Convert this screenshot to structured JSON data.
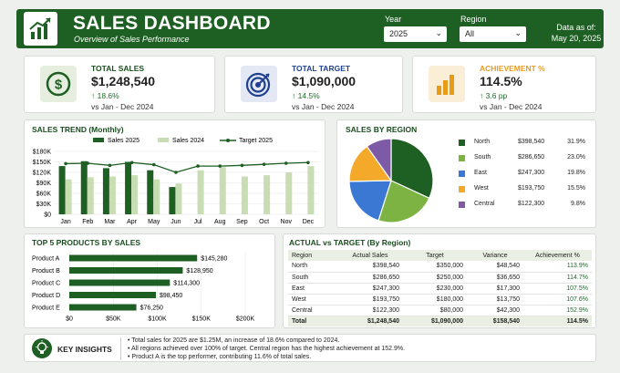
{
  "header": {
    "title": "SALES DASHBOARD",
    "subtitle": "Overview of Sales Performance",
    "year_label": "Year",
    "year_value": "2025",
    "region_label": "Region",
    "region_value": "All",
    "as_of_label": "Data as of:",
    "as_of_date": "May 20, 2025"
  },
  "kpis": [
    {
      "label": "TOTAL SALES",
      "value": "$1,248,540",
      "change": "↑ 18.6%",
      "comparison": "vs Jan - Dec 2024",
      "icon": "dollar-icon",
      "color": "#1e5f23"
    },
    {
      "label": "TOTAL TARGET",
      "value": "$1,090,000",
      "change": "↑ 14.5%",
      "comparison": "vs Jan - Dec 2024",
      "icon": "target-icon",
      "color": "#1f3f8f"
    },
    {
      "label": "ACHIEVEMENT %",
      "value": "114.5%",
      "change": "↑ 3.6 pp",
      "comparison": "vs Jan - Dec 2024",
      "icon": "bar-chart-icon",
      "color": "#e89b17"
    }
  ],
  "sales_trend": {
    "title": "SALES TREND (Monthly)",
    "legend": [
      "Sales 2025",
      "Sales 2024",
      "Target 2025"
    ]
  },
  "sales_by_region": {
    "title": "SALES BY REGION",
    "items": [
      {
        "name": "North",
        "value": "$398,540",
        "pct": "31.9%",
        "color": "#1e5f23"
      },
      {
        "name": "South",
        "value": "$286,650",
        "pct": "23.0%",
        "color": "#7cb342"
      },
      {
        "name": "East",
        "value": "$247,300",
        "pct": "19.8%",
        "color": "#3a78d4"
      },
      {
        "name": "West",
        "value": "$193,750",
        "pct": "15.5%",
        "color": "#f4a92a"
      },
      {
        "name": "Central",
        "value": "$122,300",
        "pct": "9.8%",
        "color": "#7d5aa6"
      }
    ]
  },
  "top_products": {
    "title": "TOP 5 PRODUCTS BY SALES"
  },
  "actual_vs_target": {
    "title": "ACTUAL vs TARGET (By Region)",
    "headers": [
      "Region",
      "Actual Sales",
      "Target",
      "Variance",
      "Achievement %"
    ],
    "rows": [
      [
        "North",
        "$398,540",
        "$350,000",
        "$48,540",
        "113.9%"
      ],
      [
        "South",
        "$286,650",
        "$250,000",
        "$36,650",
        "114.7%"
      ],
      [
        "East",
        "$247,300",
        "$230,000",
        "$17,300",
        "107.5%"
      ],
      [
        "West",
        "$193,750",
        "$180,000",
        "$13,750",
        "107.6%"
      ],
      [
        "Central",
        "$122,300",
        "$80,000",
        "$42,300",
        "152.9%"
      ]
    ],
    "total": [
      "Total",
      "$1,248,540",
      "$1,090,000",
      "$158,540",
      "114.5%"
    ]
  },
  "insights": {
    "title": "KEY INSIGHTS",
    "items": [
      "Total sales for 2025 are $1.25M, an increase of 18.6% compared to 2024.",
      "All regions achieved over 100% of target. Central region has the highest achievement at 152.9%.",
      "Product A is the top performer, contributing 11.6% of total sales."
    ]
  },
  "chart_data": [
    {
      "type": "bar",
      "title": "SALES TREND (Monthly)",
      "categories": [
        "Jan",
        "Feb",
        "Mar",
        "Apr",
        "May",
        "Jun",
        "Jul",
        "Aug",
        "Sep",
        "Oct",
        "Nov",
        "Dec"
      ],
      "series": [
        {
          "name": "Sales 2025",
          "values": [
            138,
            152,
            132,
            150,
            126,
            78,
            null,
            null,
            null,
            null,
            null,
            null
          ],
          "color": "#1e5f23"
        },
        {
          "name": "Sales 2024",
          "values": [
            100,
            106,
            108,
            112,
            100,
            88,
            126,
            135,
            108,
            112,
            120,
            138
          ],
          "color": "#c8ddb3"
        },
        {
          "name": "Target 2025",
          "type": "line",
          "values": [
            145,
            146,
            140,
            148,
            142,
            120,
            138,
            138,
            140,
            143,
            146,
            148
          ],
          "color": "#1e5f23"
        }
      ],
      "yticks": [
        "$0",
        "$30K",
        "$60K",
        "$90K",
        "$120K",
        "$150K",
        "$180K"
      ],
      "ylim": [
        0,
        180
      ]
    },
    {
      "type": "pie",
      "title": "SALES BY REGION",
      "labels": [
        "North",
        "South",
        "East",
        "West",
        "Central"
      ],
      "values": [
        31.9,
        23.0,
        19.8,
        15.5,
        9.8
      ]
    },
    {
      "type": "bar",
      "orientation": "horizontal",
      "title": "TOP 5 PRODUCTS BY SALES",
      "categories": [
        "Product A",
        "Product B",
        "Product C",
        "Product D",
        "Product E"
      ],
      "values": [
        145280,
        128950,
        114300,
        98450,
        76250
      ],
      "labels": [
        "$145,280",
        "$128,950",
        "$114,300",
        "$98,450",
        "$76,250"
      ],
      "xticks": [
        "$0",
        "$50K",
        "$100K",
        "$150K",
        "$200K"
      ],
      "xlim": [
        0,
        200000
      ]
    }
  ]
}
